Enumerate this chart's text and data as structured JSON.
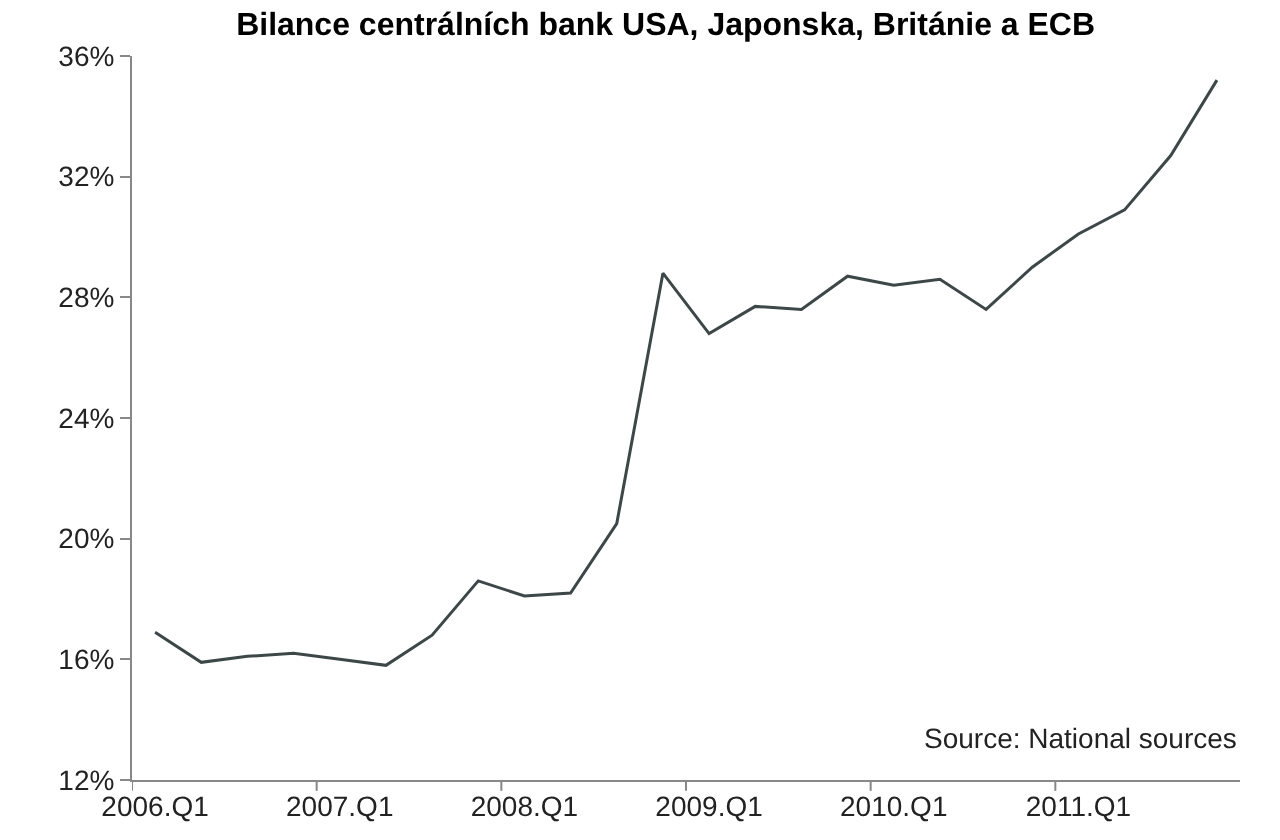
{
  "chart_data": {
    "type": "line",
    "title": "Bilance centrálních bank USA, Japonska, Británie a ECB",
    "categories": [
      "2006.Q1",
      null,
      null,
      null,
      "2007.Q1",
      null,
      null,
      null,
      "2008.Q1",
      null,
      null,
      null,
      "2009.Q1",
      null,
      null,
      null,
      "2010.Q1",
      null,
      null,
      null,
      "2011.Q1",
      null,
      null,
      null
    ],
    "values": [
      16.9,
      15.9,
      16.1,
      16.2,
      16.0,
      15.8,
      16.8,
      18.6,
      18.1,
      18.2,
      20.5,
      28.8,
      26.8,
      27.7,
      27.6,
      28.7,
      28.4,
      28.6,
      27.6,
      29.0,
      30.1,
      30.9,
      32.7,
      35.2
    ],
    "color": "#3d4747",
    "ylim": [
      12,
      36
    ],
    "yticks": [
      {
        "value": 12,
        "label": "12%"
      },
      {
        "value": 16,
        "label": "16%"
      },
      {
        "value": 20,
        "label": "20%"
      },
      {
        "value": 24,
        "label": "24%"
      },
      {
        "value": 28,
        "label": "28%"
      },
      {
        "value": 32,
        "label": "32%"
      },
      {
        "value": 36,
        "label": "36%"
      }
    ],
    "grid": false,
    "marker": "none",
    "line_style": "solid",
    "annotations": [
      "Source: National sources"
    ]
  }
}
